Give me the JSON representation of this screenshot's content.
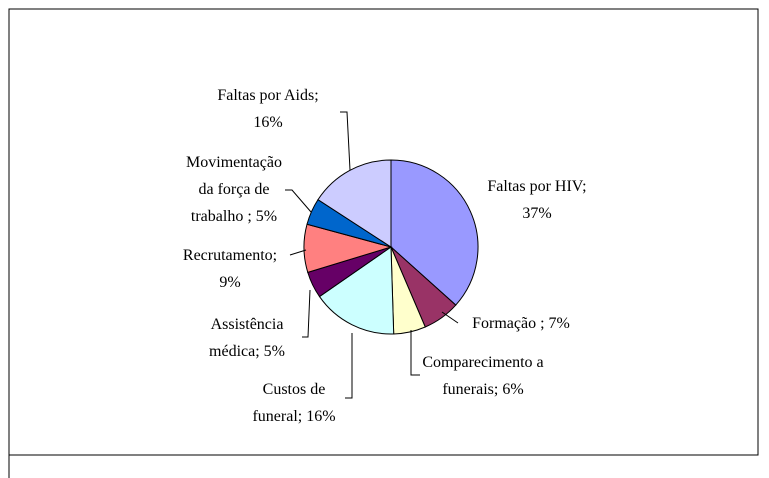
{
  "chart_data": {
    "type": "pie",
    "categories": [
      "Faltas por HIV;",
      "Formação ;",
      "Comparecimento a funerais;",
      "Custos de funeral;",
      "Assistência médica;",
      "Recrutamento;",
      "Movimentação da força de trabalho ;",
      "Faltas por Aids;"
    ],
    "values": [
      37,
      7,
      6,
      16,
      5,
      9,
      5,
      16
    ],
    "value_labels": [
      "37%",
      "7%",
      "6%",
      "16%",
      "5%",
      "9%",
      "5%",
      "16%"
    ],
    "colors": [
      "#9999ff",
      "#993366",
      "#ffffcc",
      "#ccffff",
      "#660066",
      "#ff8080",
      "#0066cc",
      "#ccccff"
    ]
  }
}
